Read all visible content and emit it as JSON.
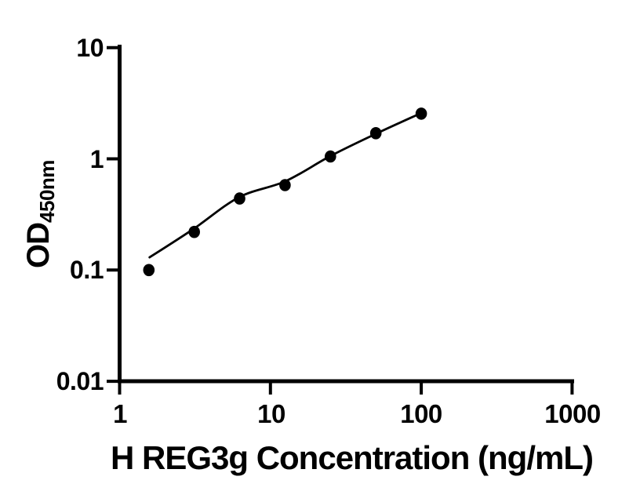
{
  "figure": {
    "background": "#ffffff",
    "foreground": "#000000"
  },
  "chart_data": {
    "type": "scatter",
    "subtype": "elisa-standard-curve",
    "xlabel": "H REG3g Concentration (ng/mL)",
    "ylabel_base": "OD",
    "ylabel_sub": "450nm",
    "x_scale": "log",
    "y_scale": "log",
    "xlim": [
      1,
      1000
    ],
    "ylim": [
      0.01,
      10
    ],
    "x_ticks": [
      1,
      10,
      100,
      1000
    ],
    "y_ticks": [
      10,
      1,
      0.1,
      0.01
    ],
    "x_tick_labels": [
      "1",
      "10",
      "100",
      "1000"
    ],
    "y_tick_labels": [
      "10",
      "1",
      "0.1",
      "0.01"
    ],
    "grid": false,
    "legend": false,
    "marker_color": "#000000",
    "line_color": "#000000",
    "series": [
      {
        "name": "standard-points",
        "marker": "filled-circle",
        "x": [
          1.5625,
          3.125,
          6.25,
          12.5,
          25,
          50,
          100
        ],
        "y": [
          0.1,
          0.22,
          0.44,
          0.58,
          1.05,
          1.7,
          2.55
        ]
      }
    ],
    "fit_curve": {
      "name": "fitted-line",
      "x": [
        1.58,
        3.1,
        6.2,
        12.6,
        25,
        50,
        100
      ],
      "y": [
        0.13,
        0.235,
        0.452,
        0.63,
        1.06,
        1.68,
        2.58
      ]
    }
  }
}
